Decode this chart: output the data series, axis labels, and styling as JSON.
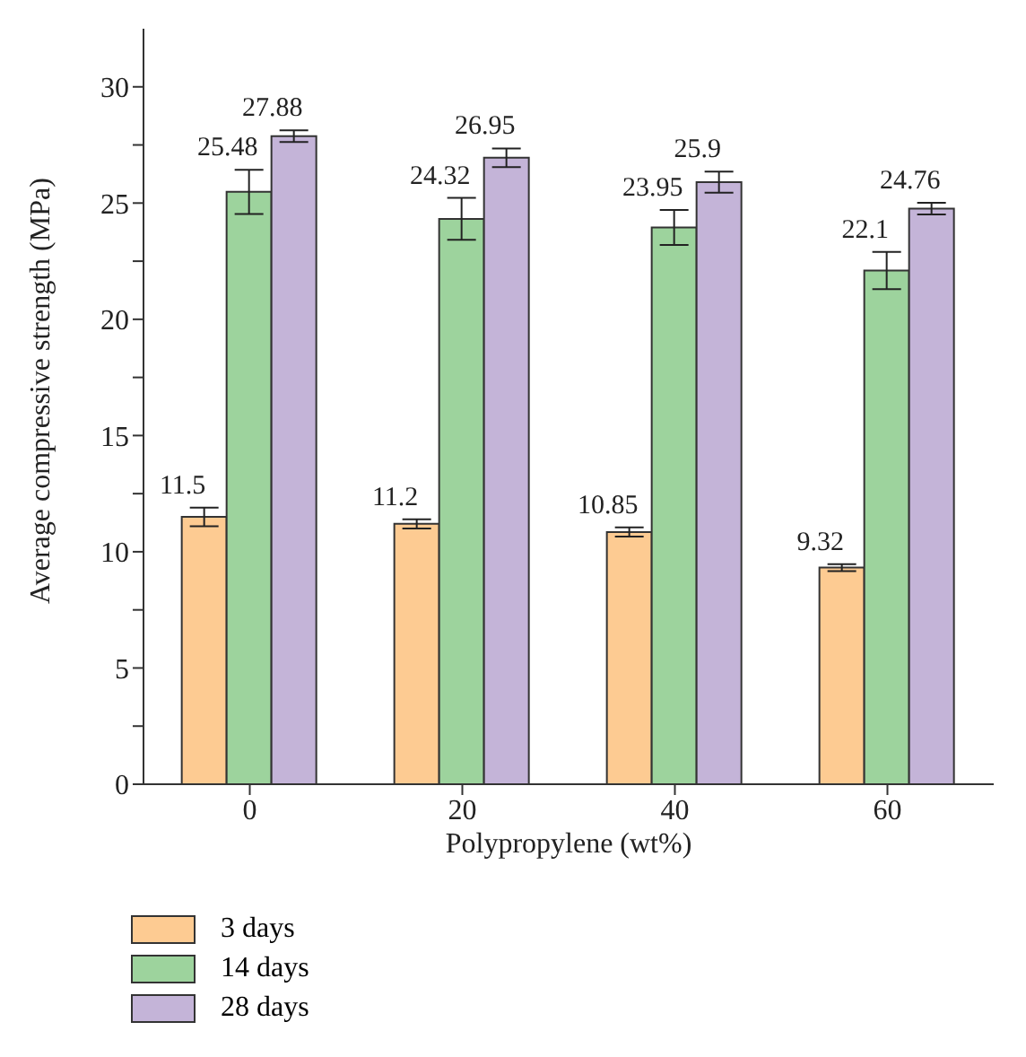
{
  "chart_data": {
    "type": "bar",
    "xlabel": "Polypropylene (wt%)",
    "ylabel": "Average compressive strength (MPa)",
    "categories": [
      "0",
      "20",
      "40",
      "60"
    ],
    "series": [
      {
        "name": "3 days",
        "color": "#fdcb92",
        "values": [
          11.5,
          11.2,
          10.85,
          9.32
        ],
        "errors": [
          0.4,
          0.2,
          0.2,
          0.15
        ]
      },
      {
        "name": "14 days",
        "color": "#9dd39d",
        "values": [
          25.48,
          24.32,
          23.95,
          22.1
        ],
        "errors": [
          0.95,
          0.9,
          0.75,
          0.8
        ]
      },
      {
        "name": "28 days",
        "color": "#c4b4d8",
        "values": [
          27.88,
          26.95,
          25.9,
          24.76
        ],
        "errors": [
          0.25,
          0.4,
          0.45,
          0.25
        ]
      }
    ],
    "ylim": [
      0,
      32.5
    ],
    "yticks": [
      0,
      {
        "value": 2.5,
        "label": null
      },
      5,
      {
        "value": 7.5,
        "label": null
      },
      10,
      {
        "value": 12.5,
        "label": null
      },
      15,
      {
        "value": 17.5,
        "label": null
      },
      20,
      {
        "value": 22.5,
        "label": null
      },
      25,
      {
        "value": 27.5,
        "label": null
      },
      30
    ],
    "data_labels": true,
    "grid": false,
    "legend": "bottom left"
  }
}
